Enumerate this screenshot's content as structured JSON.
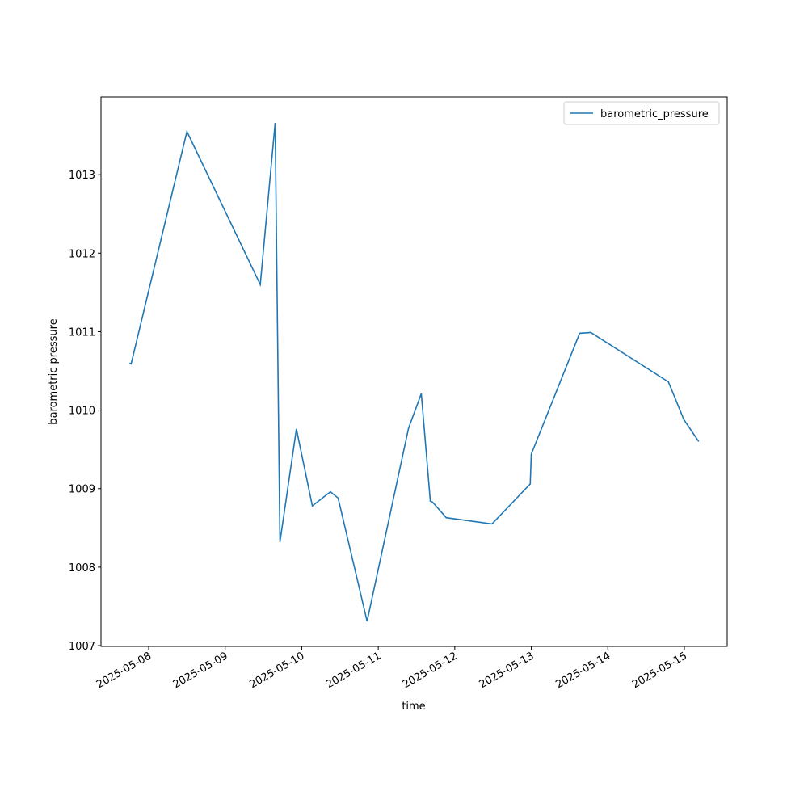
{
  "chart_data": {
    "type": "line",
    "x_label": "time",
    "y_label": "barometric pressure",
    "x": [
      "2025-05-07T18:00",
      "2025-05-07T18:30",
      "2025-05-08T12:00",
      "2025-05-09T11:00",
      "2025-05-09T15:40",
      "2025-05-09T17:10",
      "2025-05-09T22:20",
      "2025-05-10T03:20",
      "2025-05-10T09:00",
      "2025-05-10T11:25",
      "2025-05-10T20:30",
      "2025-05-11T09:30",
      "2025-05-11T13:30",
      "2025-05-11T16:20",
      "2025-05-11T17:00",
      "2025-05-11T21:20",
      "2025-05-12T11:40",
      "2025-05-12T23:40",
      "2025-05-13T00:00",
      "2025-05-13T15:10",
      "2025-05-13T18:40",
      "2025-05-14T19:00",
      "2025-05-14T23:50",
      "2025-05-15T04:30"
    ],
    "series": [
      {
        "name": "barometric_pressure",
        "color": "#1f77b4",
        "values": [
          1010.6,
          1010.59,
          1013.55,
          1011.6,
          1013.66,
          1008.32,
          1009.76,
          1008.78,
          1008.96,
          1008.88,
          1007.31,
          1009.77,
          1010.21,
          1008.84,
          1008.83,
          1008.63,
          1008.55,
          1009.06,
          1009.44,
          1010.98,
          1010.99,
          1010.36,
          1009.88,
          1009.6
        ]
      }
    ],
    "xlim": [
      "2025-05-07T09:03",
      "2025-05-15T13:26"
    ],
    "xticks": [
      "2025-05-08",
      "2025-05-09",
      "2025-05-10",
      "2025-05-11",
      "2025-05-12",
      "2025-05-13",
      "2025-05-14",
      "2025-05-15"
    ],
    "ylim": [
      1006.99,
      1013.99
    ],
    "yticks": [
      1007,
      1008,
      1009,
      1010,
      1011,
      1012,
      1013
    ],
    "legend": "upper right",
    "grid": false
  }
}
